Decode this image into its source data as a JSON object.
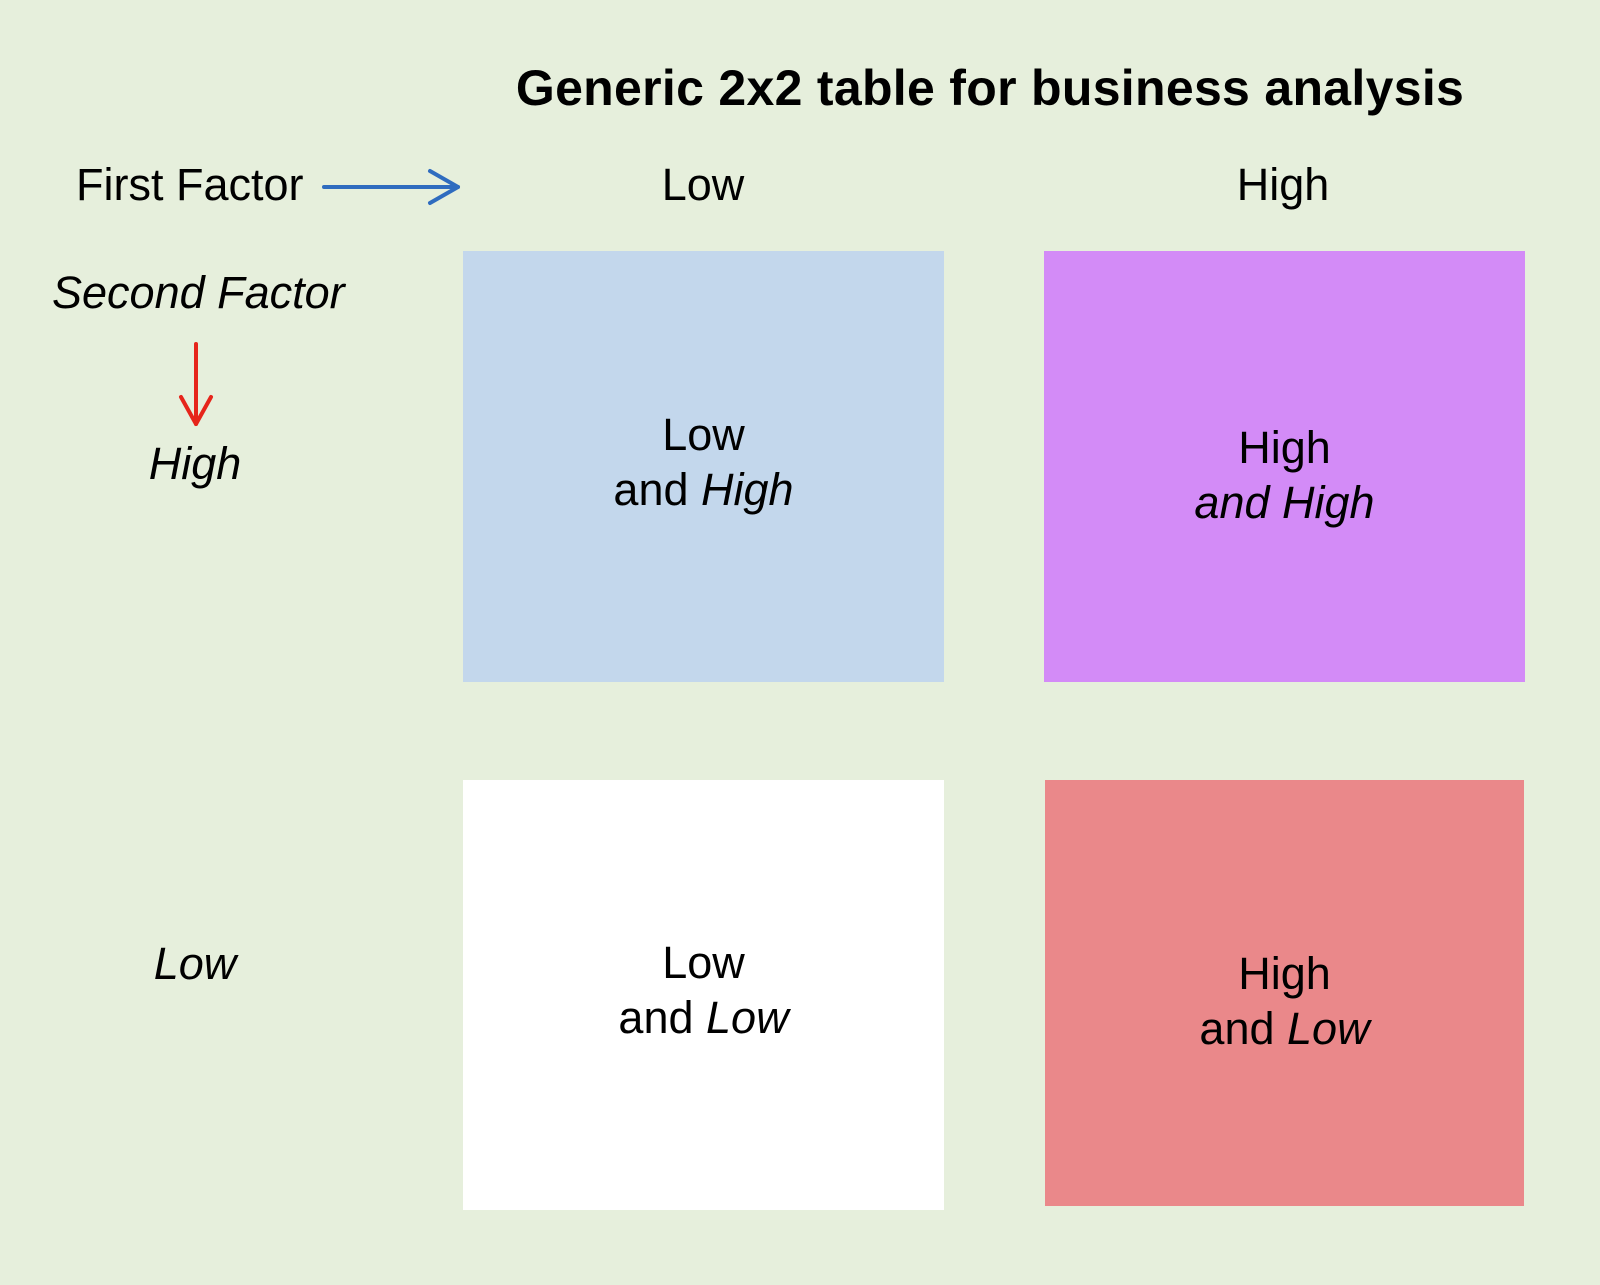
{
  "title": "Generic 2x2 table for business analysis",
  "colors": {
    "background": "#e6efdc",
    "low_high": "#c3d7ec",
    "high_high": "#d38bf7",
    "low_low": "#ffffff",
    "high_low": "#ea888a",
    "first_arrow": "#2f6cbf",
    "second_arrow": "#e6251b"
  },
  "first_factor": {
    "label": "First Factor",
    "arrow_icon": "arrow-right-icon",
    "levels": [
      "Low",
      "High"
    ]
  },
  "second_factor": {
    "label": "Second Factor",
    "arrow_icon": "arrow-down-icon",
    "levels": [
      "High",
      "Low"
    ]
  },
  "cells": {
    "low_high": {
      "line1": "Low",
      "line2_plain": "and ",
      "line2_italic": "High"
    },
    "high_high": {
      "line1": "High",
      "line2_italic": "and High"
    },
    "low_low": {
      "line1": "Low",
      "line2_plain": "and ",
      "line2_italic": "Low"
    },
    "high_low": {
      "line1": "High",
      "line2_plain": "and ",
      "line2_italic": "Low"
    }
  }
}
